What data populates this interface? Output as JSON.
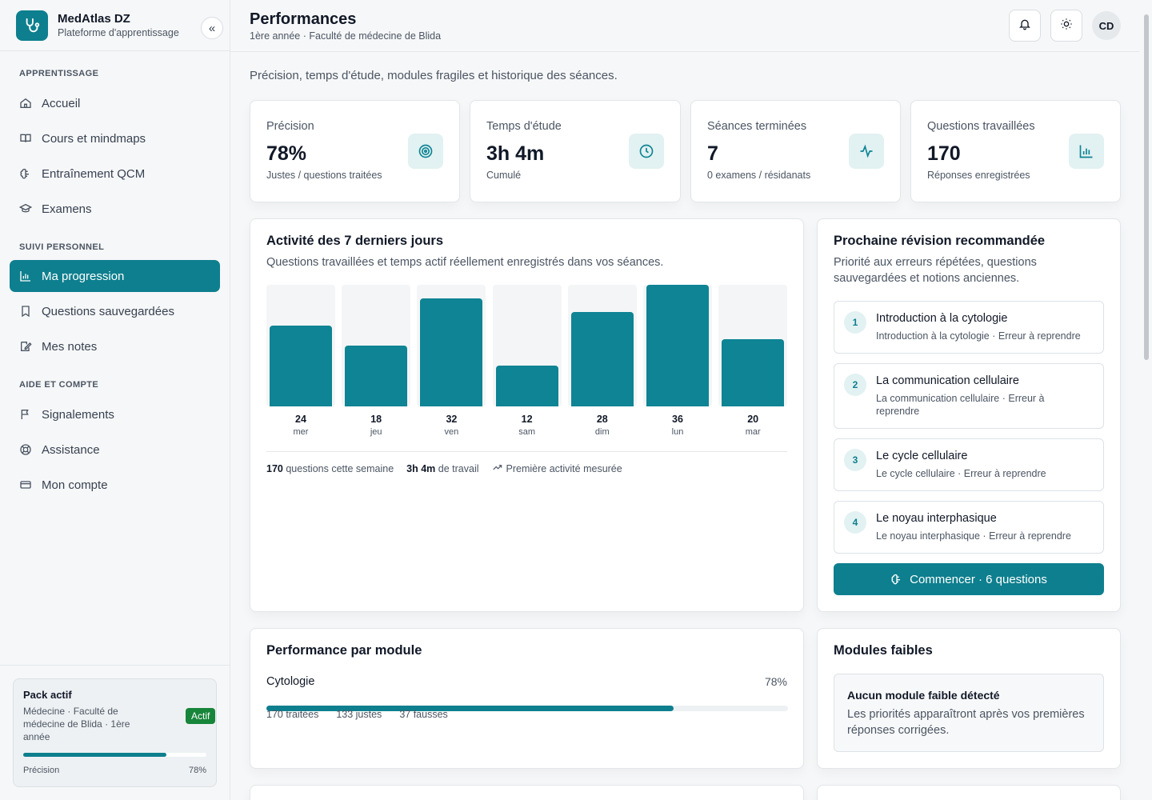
{
  "app": {
    "name": "MedAtlas DZ",
    "subtitle": "Plateforme d'apprentissage"
  },
  "sidebar": {
    "sections": [
      {
        "label": "APPRENTISSAGE",
        "items": [
          {
            "label": "Accueil",
            "icon": "home-icon"
          },
          {
            "label": "Cours et mindmaps",
            "icon": "book-icon"
          },
          {
            "label": "Entraînement QCM",
            "icon": "brain-icon"
          },
          {
            "label": "Examens",
            "icon": "graduation-cap-icon"
          }
        ]
      },
      {
        "label": "SUIVI PERSONNEL",
        "items": [
          {
            "label": "Ma progression",
            "icon": "bar-chart-icon",
            "active": true
          },
          {
            "label": "Questions sauvegardées",
            "icon": "bookmark-icon"
          },
          {
            "label": "Mes notes",
            "icon": "edit-note-icon"
          }
        ]
      },
      {
        "label": "AIDE ET COMPTE",
        "items": [
          {
            "label": "Signalements",
            "icon": "flag-icon"
          },
          {
            "label": "Assistance",
            "icon": "lifebuoy-icon"
          },
          {
            "label": "Mon compte",
            "icon": "credit-card-icon"
          }
        ]
      }
    ],
    "pack": {
      "title": "Pack actif",
      "description": "Médecine · Faculté de médecine de Blida · 1ère année",
      "badge": "Actif",
      "precision_label": "Précision",
      "precision_value": "78%",
      "precision_fraction": 0.78
    }
  },
  "header": {
    "title": "Performances",
    "subtitle": "1ère année · Faculté de médecine de Blida",
    "avatar": "CD"
  },
  "intro": "Précision, temps d'étude, modules fragiles et historique des séances.",
  "kpis": [
    {
      "label": "Précision",
      "value": "78%",
      "note": "Justes / questions traitées",
      "icon": "target-icon"
    },
    {
      "label": "Temps d'étude",
      "value": "3h 4m",
      "note": "Cumulé",
      "icon": "clock-icon"
    },
    {
      "label": "Séances terminées",
      "value": "7",
      "note": "0 examens / résidanats",
      "icon": "activity-icon"
    },
    {
      "label": "Questions travaillées",
      "value": "170",
      "note": "Réponses enregistrées",
      "icon": "bar-chart-icon"
    }
  ],
  "activity": {
    "title": "Activité des 7 derniers jours",
    "subtitle": "Questions travaillées et temps actif réellement enregistrés dans vos séances.",
    "footer": {
      "questions_value": "170",
      "questions_text": "questions cette semaine",
      "time_value": "3h 4m",
      "time_text": "de travail",
      "trend_text": "Première activité mesurée"
    }
  },
  "chart_data": {
    "type": "bar",
    "categories": [
      "mer",
      "jeu",
      "ven",
      "sam",
      "dim",
      "lun",
      "mar"
    ],
    "values": [
      24,
      18,
      32,
      12,
      28,
      36,
      20
    ],
    "ylim": [
      0,
      36
    ]
  },
  "revision": {
    "title": "Prochaine révision recommandée",
    "subtitle": "Priorité aux erreurs répétées, questions sauvegardées et notions anciennes.",
    "items": [
      {
        "num": "1",
        "title": "Introduction à la cytologie",
        "sub": "Introduction à la cytologie · Erreur à reprendre"
      },
      {
        "num": "2",
        "title": "La communication cellulaire",
        "sub": "La communication cellulaire · Erreur à reprendre"
      },
      {
        "num": "3",
        "title": "Le cycle cellulaire",
        "sub": "Le cycle cellulaire · Erreur à reprendre"
      },
      {
        "num": "4",
        "title": "Le noyau interphasique",
        "sub": "Le noyau interphasique · Erreur à reprendre"
      }
    ],
    "cta": "Commencer · 6 questions"
  },
  "modules": {
    "title": "Performance par module",
    "name": "Cytologie",
    "percent": "78%",
    "fraction": 0.78,
    "stats": [
      "170 traitées",
      "133 justes",
      "37 fausses"
    ]
  },
  "weak": {
    "title": "Modules faibles",
    "box_title": "Aucun module faible détecté",
    "box_text": "Les priorités apparaîtront après vos premières réponses corrigées."
  },
  "colors": {
    "accent": "#0e7f8e",
    "active_badge": "#17853a"
  }
}
